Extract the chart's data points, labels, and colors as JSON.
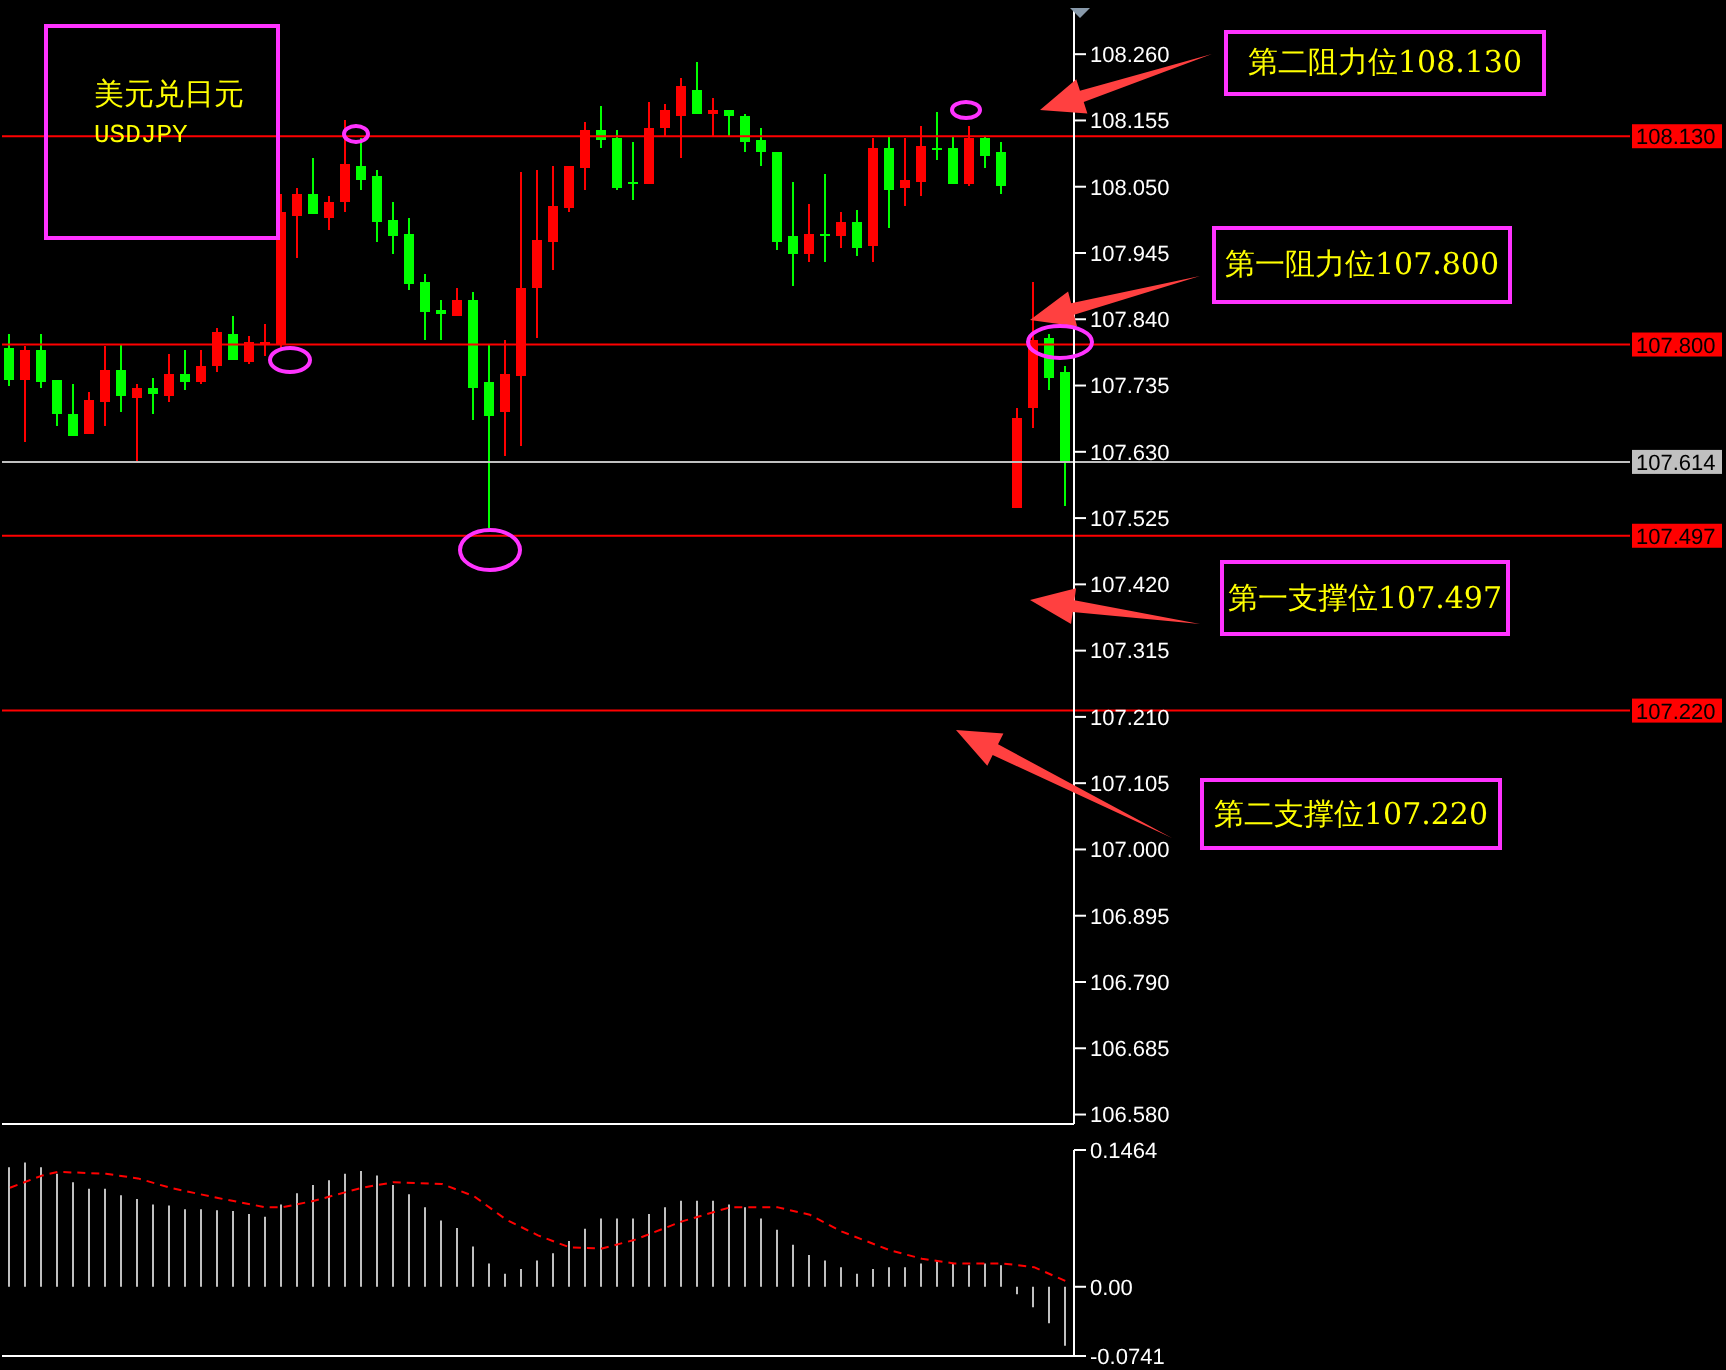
{
  "chart_data": [
    {
      "type": "candlestick",
      "title": "美元兑日元",
      "subtitle": "USDJPY",
      "tick_labels": "y",
      "categories": [
        null,
        null,
        null,
        null,
        null,
        null,
        null,
        null,
        null,
        null,
        null,
        null,
        null,
        null,
        null,
        null,
        null,
        null,
        null,
        null,
        null,
        null,
        null,
        null,
        null,
        null,
        null,
        null,
        null,
        null,
        null,
        null,
        null,
        null,
        null,
        null,
        null,
        null,
        null,
        null,
        null,
        null,
        null,
        null,
        null,
        null,
        null,
        null,
        null,
        null,
        null,
        null,
        null,
        null,
        null,
        null,
        null,
        null,
        null,
        null,
        null,
        null,
        null,
        null,
        null,
        null,
        null
      ],
      "ohlc": [
        [
          107.794,
          107.818,
          107.734,
          107.745
        ],
        [
          107.745,
          107.797,
          107.647,
          107.792
        ],
        [
          107.792,
          107.816,
          107.732,
          107.741
        ],
        [
          107.743,
          107.743,
          107.671,
          107.691
        ],
        [
          107.69,
          107.739,
          107.654,
          107.654
        ],
        [
          107.657,
          107.724,
          107.657,
          107.712
        ],
        [
          107.71,
          107.797,
          107.671,
          107.759
        ],
        [
          107.759,
          107.8,
          107.694,
          107.72
        ],
        [
          107.715,
          107.739,
          107.614,
          107.731
        ],
        [
          107.731,
          107.747,
          107.69,
          107.722
        ],
        [
          107.72,
          107.784,
          107.71,
          107.753
        ],
        [
          107.753,
          107.791,
          107.729,
          107.74
        ],
        [
          107.74,
          107.791,
          107.737,
          107.766
        ],
        [
          107.766,
          107.825,
          107.757,
          107.819
        ],
        [
          107.816,
          107.844,
          107.776,
          107.776
        ],
        [
          107.772,
          107.813,
          107.769,
          107.803
        ],
        [
          107.8,
          107.831,
          107.781,
          107.803
        ],
        [
          107.802,
          108.037,
          107.792,
          108.011
        ],
        [
          108.005,
          108.048,
          107.936,
          108.038
        ],
        [
          108.038,
          108.095,
          108.008,
          108.008
        ],
        [
          108.001,
          108.036,
          107.98,
          108.026
        ],
        [
          108.027,
          108.157,
          108.011,
          108.085
        ],
        [
          108.082,
          108.126,
          108.046,
          108.06
        ],
        [
          108.066,
          108.076,
          107.964,
          107.995
        ],
        [
          107.998,
          108.026,
          107.943,
          107.972
        ],
        [
          107.976,
          108.001,
          107.886,
          107.895
        ],
        [
          107.9,
          107.911,
          107.807,
          107.851
        ],
        [
          107.854,
          107.872,
          107.807,
          107.848
        ],
        [
          107.845,
          107.891,
          107.845,
          107.872
        ],
        [
          107.872,
          107.882,
          107.679,
          107.732
        ],
        [
          107.74,
          107.802,
          107.509,
          107.688
        ],
        [
          107.694,
          107.806,
          107.624,
          107.752
        ],
        [
          107.751,
          108.074,
          107.64,
          107.891
        ],
        [
          107.889,
          108.076,
          107.81,
          107.966
        ],
        [
          107.964,
          108.082,
          107.917,
          108.019
        ],
        [
          108.016,
          108.084,
          108.009,
          108.084
        ],
        [
          108.079,
          108.151,
          108.046,
          108.139
        ],
        [
          108.141,
          108.178,
          108.111,
          108.124
        ],
        [
          108.126,
          108.139,
          108.045,
          108.048
        ],
        [
          108.059,
          108.12,
          108.03,
          108.055
        ],
        [
          108.054,
          108.184,
          108.054,
          108.142
        ],
        [
          108.142,
          108.181,
          108.131,
          108.173
        ],
        [
          108.161,
          108.223,
          108.095,
          108.209
        ],
        [
          108.204,
          108.248,
          108.165,
          108.165
        ],
        [
          108.165,
          108.192,
          108.131,
          108.17
        ],
        [
          108.17,
          108.173,
          108.131,
          108.161
        ],
        [
          108.161,
          108.165,
          108.105,
          108.12
        ],
        [
          108.123,
          108.142,
          108.083,
          108.104
        ],
        [
          108.104,
          108.104,
          107.95,
          107.963
        ],
        [
          107.972,
          108.057,
          107.894,
          107.944
        ],
        [
          107.944,
          108.023,
          107.932,
          107.976
        ],
        [
          107.976,
          108.07,
          107.932,
          107.972
        ],
        [
          107.972,
          108.01,
          107.954,
          107.994
        ],
        [
          107.994,
          108.013,
          107.941,
          107.954
        ],
        [
          107.957,
          108.127,
          107.932,
          108.11
        ],
        [
          108.11,
          108.129,
          107.985,
          108.045
        ],
        [
          108.048,
          108.126,
          108.019,
          108.06
        ],
        [
          108.057,
          108.145,
          108.035,
          108.114
        ],
        [
          108.11,
          108.167,
          108.092,
          108.107
        ],
        [
          108.11,
          108.129,
          108.054,
          108.054
        ],
        [
          108.054,
          108.145,
          108.051,
          108.126
        ],
        [
          108.126,
          108.129,
          108.079,
          108.098
        ],
        [
          108.104,
          108.12,
          108.038,
          108.051
        ],
        [
          107.54,
          107.7,
          107.54,
          107.684
        ],
        [
          107.7,
          107.9,
          107.668,
          107.806
        ],
        [
          107.809,
          107.818,
          107.728,
          107.747
        ],
        [
          107.756,
          107.766,
          107.543,
          107.614
        ]
      ],
      "colors": [
        "#00ff00",
        "#ff0000",
        "#00ff00",
        "#00ff00",
        "#00ff00",
        "#ff0000",
        "#ff0000",
        "#00ff00",
        "#ff0000",
        "#00ff00",
        "#ff0000",
        "#00ff00",
        "#ff0000",
        "#ff0000",
        "#00ff00",
        "#ff0000",
        "#ff0000",
        "#ff0000",
        "#ff0000",
        "#00ff00",
        "#ff0000",
        "#ff0000",
        "#00ff00",
        "#00ff00",
        "#00ff00",
        "#00ff00",
        "#00ff00",
        "#00ff00",
        "#ff0000",
        "#00ff00",
        "#00ff00",
        "#ff0000",
        "#ff0000",
        "#ff0000",
        "#ff0000",
        "#ff0000",
        "#ff0000",
        "#00ff00",
        "#00ff00",
        "#00ff00",
        "#ff0000",
        "#ff0000",
        "#ff0000",
        "#00ff00",
        "#ff0000",
        "#00ff00",
        "#00ff00",
        "#00ff00",
        "#00ff00",
        "#00ff00",
        "#ff0000",
        "#00ff00",
        "#ff0000",
        "#00ff00",
        "#ff0000",
        "#00ff00",
        "#ff0000",
        "#ff0000",
        "#00ff00",
        "#00ff00",
        "#ff0000",
        "#00ff00",
        "#00ff00",
        "#ff0000",
        "#ff0000",
        "#00ff00",
        "#00ff00"
      ],
      "ylim": [
        106.565,
        108.33
      ],
      "yticks": [
        {
          "value": 106.58,
          "label": "106.580"
        },
        106.685,
        {
          "value": 106.79,
          "label": "106.790"
        },
        106.895,
        {
          "value": 107,
          "label": "107.000"
        },
        107.105,
        {
          "value": 107.21,
          "label": "107.210"
        },
        107.315,
        {
          "value": 107.42,
          "label": "107.420"
        },
        107.525,
        {
          "value": 107.63,
          "label": "107.630"
        },
        107.735,
        {
          "value": 107.84,
          "label": "107.840"
        },
        107.945,
        {
          "value": 108.05,
          "label": "108.050"
        },
        108.155,
        {
          "value": 108.26,
          "label": "108.260"
        }
      ],
      "ref_lines": [
        {
          "axis": "y",
          "value": 108.13,
          "label": "108.130",
          "color": "#ff0000"
        },
        {
          "axis": "y",
          "value": 107.8,
          "label": "107.800",
          "color": "#ff0000"
        },
        {
          "axis": "y",
          "value": 107.614,
          "label": "107.614",
          "color": "#c0c0c0"
        },
        {
          "axis": "y",
          "value": 107.497,
          "label": "107.497",
          "color": "#ff0000"
        },
        {
          "axis": "y",
          "value": 107.22,
          "label": "107.220",
          "color": "#ff0000"
        }
      ],
      "annotations": [
        "第二阻力位108.130",
        "第一阻力位107.800",
        "第一支撑位107.497",
        "第二支撑位107.220"
      ]
    },
    {
      "type": "bar",
      "tick_labels": "y",
      "categories": [
        null,
        null,
        null,
        null,
        null,
        null,
        null,
        null,
        null,
        null,
        null,
        null,
        null,
        null,
        null,
        null,
        null,
        null,
        null,
        null,
        null,
        null,
        null,
        null,
        null,
        null,
        null,
        null,
        null,
        null,
        null,
        null,
        null,
        null,
        null,
        null,
        null,
        null,
        null,
        null,
        null,
        null,
        null,
        null,
        null,
        null,
        null,
        null,
        null,
        null,
        null,
        null,
        null,
        null,
        null,
        null,
        null,
        null,
        null,
        null,
        null,
        null,
        null,
        null,
        null,
        null,
        null
      ],
      "series": [
        {
          "type": "bar",
          "color": "#c0c0c0",
          "values": [
            0.128,
            0.133,
            0.128,
            0.121,
            0.112,
            0.105,
            0.105,
            0.098,
            0.094,
            0.088,
            0.087,
            0.083,
            0.083,
            0.082,
            0.081,
            0.078,
            0.075,
            0.088,
            0.1,
            0.109,
            0.114,
            0.121,
            0.124,
            0.119,
            0.109,
            0.099,
            0.085,
            0.071,
            0.063,
            0.043,
            0.025,
            0.014,
            0.019,
            0.028,
            0.036,
            0.049,
            0.062,
            0.073,
            0.073,
            0.073,
            0.078,
            0.085,
            0.092,
            0.092,
            0.092,
            0.088,
            0.085,
            0.073,
            0.061,
            0.045,
            0.034,
            0.028,
            0.021,
            0.014,
            0.019,
            0.021,
            0.021,
            0.025,
            0.028,
            0.025,
            0.023,
            0.025,
            0.023,
            -0.008,
            -0.022,
            -0.039,
            -0.063
          ]
        },
        {
          "type": "line",
          "color": "#ff0000",
          "line_style": "dashed",
          "marker": "none",
          "values": [
            0.106,
            null,
            0.119,
            0.123,
            null,
            null,
            0.121,
            null,
            0.116,
            null,
            0.106,
            null,
            null,
            0.095,
            null,
            null,
            0.085,
            0.085,
            null,
            0.092,
            null,
            null,
            0.106,
            null,
            0.112,
            null,
            null,
            0.11,
            null,
            0.097,
            null,
            0.072,
            null,
            0.055,
            null,
            0.042,
            null,
            0.041,
            null,
            0.05,
            null,
            null,
            0.07,
            null,
            null,
            0.085,
            null,
            null,
            0.085,
            null,
            0.077,
            null,
            0.059,
            null,
            null,
            0.039,
            null,
            0.03,
            null,
            0.025,
            null,
            null,
            0.025,
            null,
            0.021,
            null,
            0.006
          ]
        }
      ],
      "ylim": [
        -0.0741,
        0.1464
      ],
      "yticks": [
        0.1464,
        {
          "value": 0,
          "label": "0.00"
        },
        -0.0741
      ]
    }
  ]
}
